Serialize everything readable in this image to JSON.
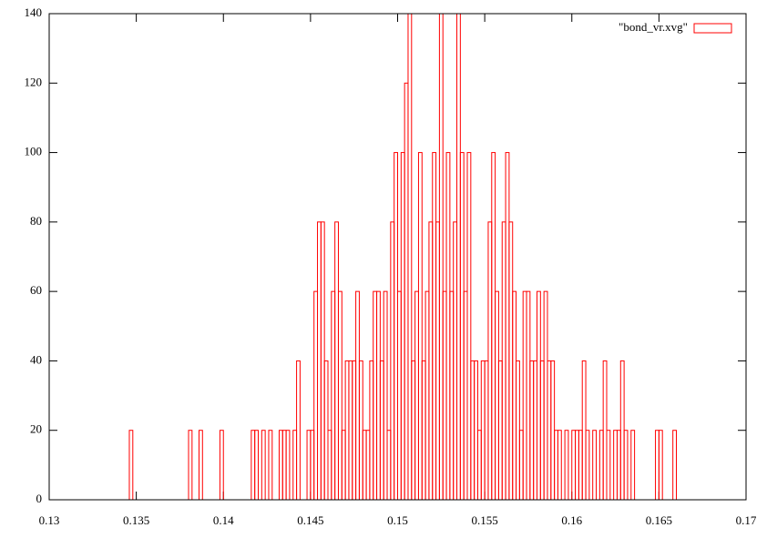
{
  "chart_data": {
    "type": "histogram",
    "bins": [
      0.1346,
      0.1348,
      0.135,
      0.1352,
      0.1354,
      0.1356,
      0.1358,
      0.136,
      0.1362,
      0.1364,
      0.1366,
      0.1368,
      0.137,
      0.1372,
      0.1374,
      0.1376,
      0.1378,
      0.138,
      0.1382,
      0.1384,
      0.1386,
      0.1388,
      0.139,
      0.1392,
      0.1394,
      0.1396,
      0.1398,
      0.14,
      0.1402,
      0.1404,
      0.1406,
      0.1408,
      0.141,
      0.1412,
      0.1414,
      0.1416,
      0.1418,
      0.142,
      0.1422,
      0.1424,
      0.1426,
      0.1428,
      0.143,
      0.1432,
      0.1434,
      0.1436,
      0.1438,
      0.144,
      0.1442,
      0.1444,
      0.1446,
      0.1448,
      0.145,
      0.1452,
      0.1454,
      0.1456,
      0.1458,
      0.146,
      0.1462,
      0.1464,
      0.1466,
      0.1468,
      0.147,
      0.1472,
      0.1474,
      0.1476,
      0.1478,
      0.148,
      0.1482,
      0.1484,
      0.1486,
      0.1488,
      0.149,
      0.1492,
      0.1494,
      0.1496,
      0.1498,
      0.15,
      0.1502,
      0.1504,
      0.1506,
      0.1508,
      0.151,
      0.1512,
      0.1514,
      0.1516,
      0.1518,
      0.152,
      0.1522,
      0.1524,
      0.1526,
      0.1528,
      0.153,
      0.1532,
      0.1534,
      0.1536,
      0.1538,
      0.154,
      0.1542,
      0.1544,
      0.1546,
      0.1548,
      0.155,
      0.1552,
      0.1554,
      0.1556,
      0.1558,
      0.156,
      0.1562,
      0.1564,
      0.1566,
      0.1568,
      0.157,
      0.1572,
      0.1574,
      0.1576,
      0.1578,
      0.158,
      0.1582,
      0.1584,
      0.1586,
      0.1588,
      0.159,
      0.1592,
      0.1594,
      0.1596,
      0.1598,
      0.16,
      0.1602,
      0.1604,
      0.1606,
      0.1608,
      0.161,
      0.1612,
      0.1614,
      0.1616,
      0.1618,
      0.162,
      0.1622,
      0.1624,
      0.1626,
      0.1628,
      0.163,
      0.1632,
      0.1634,
      0.1636,
      0.1638,
      0.164,
      0.1642,
      0.1644,
      0.1646,
      0.1648,
      0.165,
      0.1652,
      0.1654,
      0.1656,
      0.1658,
      0.166
    ],
    "series": [
      {
        "name": "\"bond_vr.xvg\"",
        "color": "#ff0000",
        "values": [
          20,
          0,
          0,
          0,
          0,
          0,
          0,
          0,
          0,
          0,
          0,
          0,
          0,
          0,
          0,
          0,
          0,
          20,
          0,
          0,
          20,
          0,
          0,
          0,
          0,
          0,
          20,
          0,
          0,
          0,
          0,
          0,
          0,
          0,
          0,
          20,
          20,
          0,
          20,
          0,
          20,
          0,
          0,
          20,
          20,
          20,
          0,
          20,
          40,
          0,
          0,
          20,
          20,
          60,
          80,
          80,
          40,
          20,
          60,
          80,
          60,
          20,
          40,
          40,
          40,
          60,
          40,
          20,
          20,
          40,
          60,
          60,
          40,
          60,
          20,
          80,
          100,
          60,
          100,
          120,
          140,
          40,
          60,
          100,
          40,
          60,
          80,
          100,
          80,
          140,
          60,
          100,
          60,
          80,
          140,
          100,
          60,
          100,
          40,
          40,
          20,
          40,
          40,
          80,
          100,
          60,
          40,
          80,
          100,
          80,
          60,
          40,
          20,
          60,
          60,
          40,
          40,
          60,
          40,
          60,
          40,
          40,
          20,
          20,
          0,
          20,
          0,
          20,
          20,
          20,
          40,
          20,
          0,
          20,
          0,
          20,
          40,
          20,
          0,
          20,
          20,
          40,
          20,
          0,
          20,
          0,
          0,
          0,
          0,
          0,
          0,
          20,
          20,
          0,
          0,
          0,
          20
        ]
      }
    ],
    "xlim": [
      0.13,
      0.17
    ],
    "xticks": [
      0.13,
      0.135,
      0.14,
      0.145,
      0.15,
      0.155,
      0.16,
      0.165,
      0.17
    ],
    "ylim": [
      0,
      140
    ],
    "yticks": [
      0,
      20,
      40,
      60,
      80,
      100,
      120,
      140
    ],
    "legend": "top-right"
  }
}
